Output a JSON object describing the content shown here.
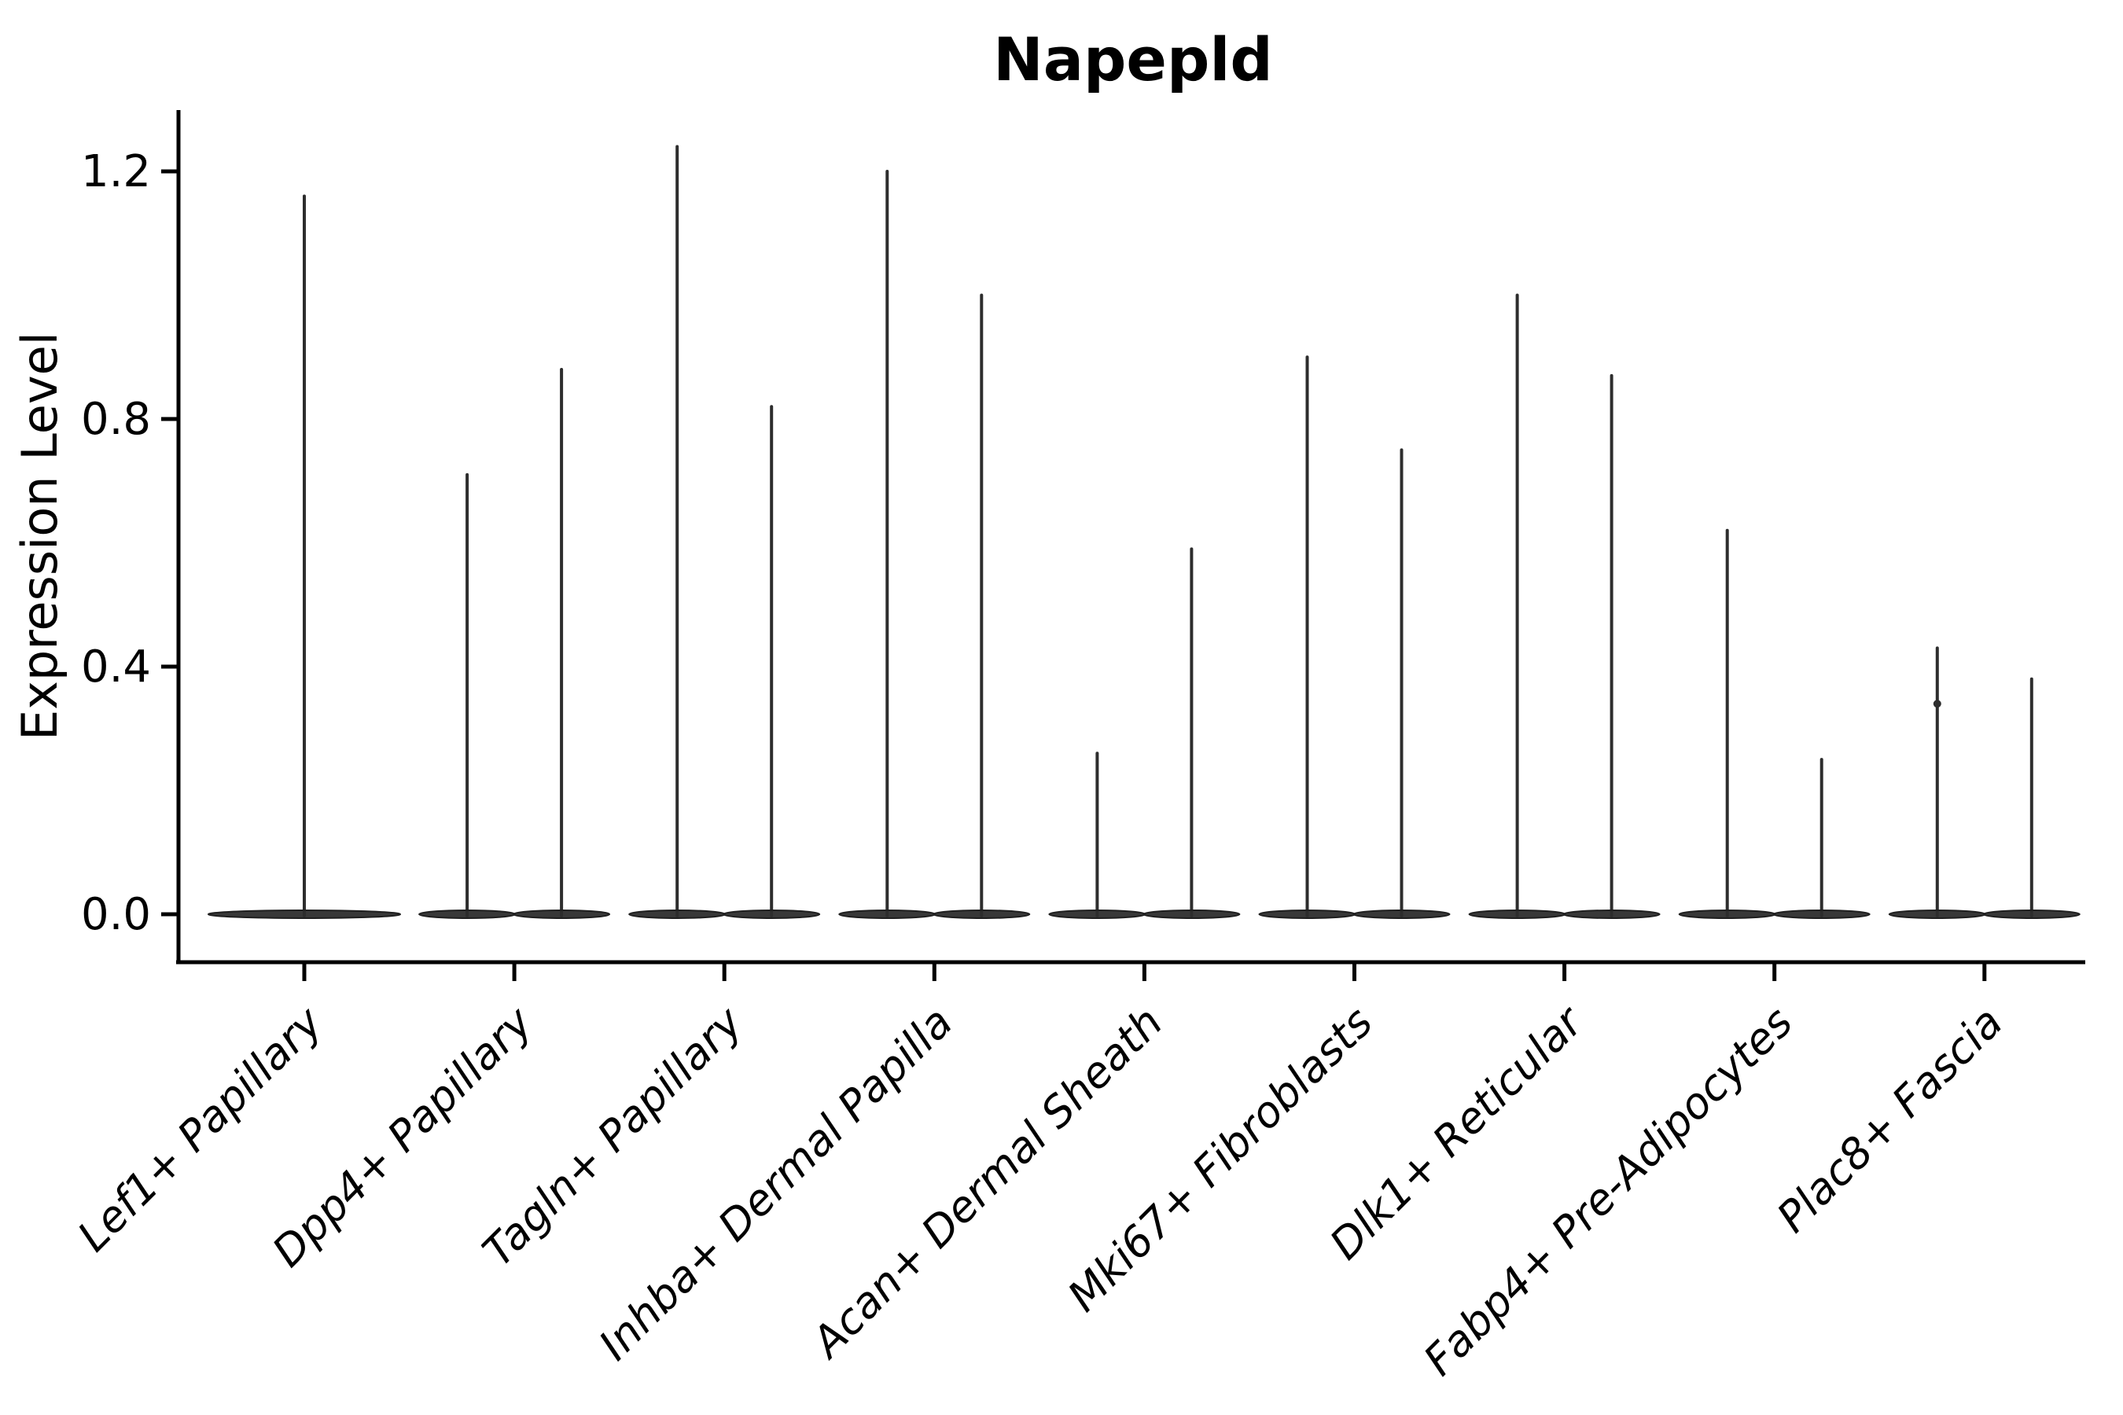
{
  "title": "Napepld",
  "axes": {
    "y": {
      "label": "Expression Level",
      "tick_labels": [
        "0.0",
        "0.4",
        "0.8",
        "1.2"
      ],
      "tick_values": [
        0.0,
        0.4,
        0.8,
        1.2
      ],
      "range": [
        -0.08,
        1.3
      ]
    },
    "x": {
      "label": "",
      "tick_labels": [
        "Lef1+ Papillary",
        "Dpp4+ Papillary",
        "Tagln+ Papillary",
        "Inhba+ Dermal Papilla",
        "Acan+ Dermal Sheath",
        "Mki67+ Fibroblasts",
        "Dlk1+ Reticular",
        "Fabp4+ Pre-Adipocytes",
        "Plac8+ Fascia"
      ],
      "tick_rotation_deg": 45
    }
  },
  "chart_data": {
    "type": "violin",
    "title": "Napepld",
    "xlabel": "",
    "ylabel": "Expression Level",
    "ylim": [
      -0.08,
      1.3
    ],
    "yticks": [
      0.0,
      0.4,
      0.8,
      1.2
    ],
    "grid": false,
    "legend": "none",
    "description": "Needle-thin violins: cell mass concentrated at expression 0 (flat wide base) with a narrow tail reaching the maximum expression value. First category has a single centered violin; all others contain two adjacent violins.",
    "categories": [
      {
        "label": "Lef1+ Papillary",
        "violins": [
          {
            "position": "center",
            "max": 1.16
          }
        ]
      },
      {
        "label": "Dpp4+ Papillary",
        "violins": [
          {
            "position": "left",
            "max": 0.71
          },
          {
            "position": "right",
            "max": 0.88
          }
        ]
      },
      {
        "label": "Tagln+ Papillary",
        "violins": [
          {
            "position": "left",
            "max": 1.24
          },
          {
            "position": "right",
            "max": 0.82
          }
        ]
      },
      {
        "label": "Inhba+ Dermal Papilla",
        "violins": [
          {
            "position": "left",
            "max": 1.2
          },
          {
            "position": "right",
            "max": 1.0
          }
        ]
      },
      {
        "label": "Acan+ Dermal Sheath",
        "violins": [
          {
            "position": "left",
            "max": 0.26
          },
          {
            "position": "right",
            "max": 0.59
          }
        ]
      },
      {
        "label": "Mki67+ Fibroblasts",
        "violins": [
          {
            "position": "left",
            "max": 0.9
          },
          {
            "position": "right",
            "max": 0.75
          }
        ]
      },
      {
        "label": "Dlk1+ Reticular",
        "violins": [
          {
            "position": "left",
            "max": 1.0
          },
          {
            "position": "right",
            "max": 0.87
          }
        ]
      },
      {
        "label": "Fabp4+ Pre-Adipocytes",
        "violins": [
          {
            "position": "left",
            "max": 0.62
          },
          {
            "position": "right",
            "max": 0.25
          }
        ]
      },
      {
        "label": "Plac8+ Fascia",
        "violins": [
          {
            "position": "left",
            "max": 0.43,
            "knot": 0.34
          },
          {
            "position": "right",
            "max": 0.38
          }
        ]
      }
    ],
    "baseline_value": 0.0
  },
  "colors": {
    "violin": "#2d2d2d",
    "violin_edge": "#1f1f1f",
    "axis": "#000000",
    "text": "#000000",
    "background": "#ffffff"
  }
}
